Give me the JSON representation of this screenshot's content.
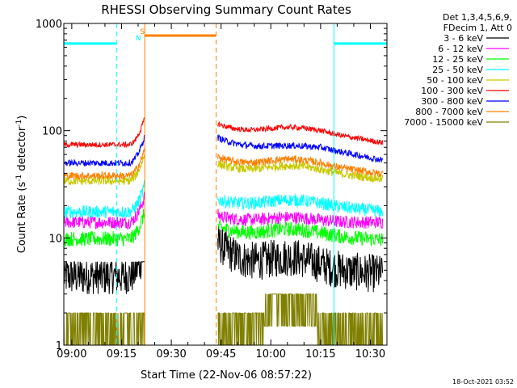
{
  "chart_data": {
    "type": "line",
    "title": "RHESSI Observing Summary Count Rates",
    "xlabel": "Start Time (22-Nov-06 08:57:22)",
    "ylabel_main": "Count Rate (s",
    "ylabel_sup1": "-1",
    "ylabel_mid": " detector",
    "ylabel_sup2": "-1",
    "ylabel_end": ")",
    "yscale": "log",
    "ylim": [
      1,
      1000
    ],
    "xlim_minutes": [
      -2.4,
      95.0
    ],
    "x_ticks": [
      {
        "m": 0,
        "label": "09:00"
      },
      {
        "m": 15,
        "label": "09:15"
      },
      {
        "m": 30,
        "label": "09:30"
      },
      {
        "m": 45,
        "label": "09:45"
      },
      {
        "m": 60,
        "label": "10:00"
      },
      {
        "m": 75,
        "label": "10:15"
      },
      {
        "m": 90,
        "label": "10:30"
      }
    ],
    "y_ticks": [
      {
        "v": 1,
        "label": "1"
      },
      {
        "v": 10,
        "label": "10"
      },
      {
        "v": 100,
        "label": "100"
      },
      {
        "v": 1000,
        "label": "1000"
      }
    ],
    "legend_header": [
      "Det 1,3,4,5,6,9,",
      "FDecim 1, Att 0"
    ],
    "legend_position": "right",
    "gap_minutes": [
      22.0,
      43.5
    ],
    "series": [
      {
        "name": "3 - 6 keV",
        "color": "#000000",
        "pre": 4.4,
        "post_start": 9.5,
        "post_min": 5.0,
        "post_hump": 6.5,
        "post_end": 4.6,
        "noise": 0.18
      },
      {
        "name": "6 - 12 keV",
        "color": "#ff00ff",
        "pre": 14.0,
        "post_start": 16.5,
        "post_min": 14.0,
        "post_hump": 15.5,
        "post_end": 14.0,
        "noise": 0.06
      },
      {
        "name": "12 - 25 keV",
        "color": "#00ff00",
        "pre": 9.8,
        "post_start": 13.0,
        "post_min": 10.5,
        "post_hump": 12.0,
        "post_end": 9.5,
        "noise": 0.07
      },
      {
        "name": "25 - 50 keV",
        "color": "#00ffff",
        "pre": 17.5,
        "post_start": 23.0,
        "post_min": 20.0,
        "post_hump": 22.5,
        "post_end": 17.5,
        "noise": 0.06
      },
      {
        "name": "50 - 100 keV",
        "color": "#c8c800",
        "pre": 34.0,
        "post_start": 50.0,
        "post_min": 41.0,
        "post_hump": 47.0,
        "post_end": 35.0,
        "noise": 0.04
      },
      {
        "name": "100 - 300 keV",
        "color": "#ff0000",
        "pre": 74.0,
        "post_start": 118.0,
        "post_min": 95.0,
        "post_hump": 107.0,
        "post_end": 76.0,
        "noise": 0.025
      },
      {
        "name": "300 - 800 keV",
        "color": "#0000ff",
        "pre": 50.0,
        "post_start": 88.0,
        "post_min": 68.0,
        "post_hump": 72.0,
        "post_end": 52.0,
        "noise": 0.03
      },
      {
        "name": "800 - 7000 keV",
        "color": "#ff8000",
        "pre": 38.0,
        "post_start": 58.0,
        "post_min": 47.0,
        "post_hump": 54.0,
        "post_end": 39.0,
        "noise": 0.035
      },
      {
        "name": "7000 - 15000 keV",
        "color": "#808000",
        "pre": 1.5,
        "post_start": 1.5,
        "post_min": 1.5,
        "post_hump": 2.5,
        "post_end": 1.5,
        "noise": 0.0
      }
    ],
    "flags": {
      "night_label": "N",
      "saa_label": "S",
      "night_color": "#00ffff",
      "saa_color": "#ff8000",
      "night_value": 650,
      "saa_value": 770,
      "night_intervals": [
        [
          -2.4,
          13.5
        ],
        [
          79.0,
          95.0
        ]
      ],
      "night_dashed_minutes": [
        13.5,
        95.0
      ],
      "night_solid_minutes": [
        79.0
      ],
      "saa_interval": [
        22.0,
        43.5
      ],
      "saa_solid_minutes": [
        22.0
      ],
      "saa_dashed_minutes": [
        43.5
      ]
    },
    "timestamp": "18-Oct-2021 03:52"
  }
}
